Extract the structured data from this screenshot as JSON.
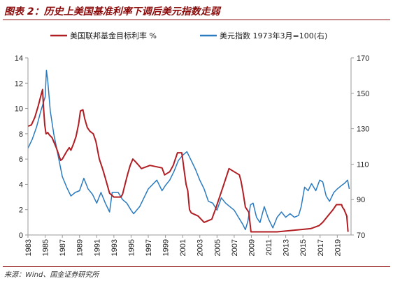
{
  "header": {
    "title": "图表 2：历史上美国基准利率下调后美元指数走弱"
  },
  "footer": {
    "source": "来源：Wind、国金证券研究所"
  },
  "colors": {
    "fed_rate": "#b01e23",
    "dxy": "#2a7bc0",
    "title": "#8b0a0a"
  },
  "chart_data": {
    "type": "line",
    "title": "",
    "xlabel": "",
    "ylabel": "",
    "y2label": "",
    "grid": false,
    "legend_position": "top",
    "xlim": [
      1983,
      2020.6
    ],
    "ylim": [
      0,
      14
    ],
    "y2lim": [
      70,
      170
    ],
    "x_ticks": [
      "1983",
      "1985",
      "1987",
      "1989",
      "1991",
      "1993",
      "1995",
      "1997",
      "1999",
      "2001",
      "2003",
      "2005",
      "2007",
      "2009",
      "2011",
      "2013",
      "2015",
      "2017",
      "2019"
    ],
    "y_ticks": [
      "0",
      "2",
      "4",
      "6",
      "8",
      "10",
      "12",
      "14"
    ],
    "y2_ticks": [
      "70",
      "90",
      "110",
      "130",
      "150",
      "170"
    ],
    "series": [
      {
        "name": "美国联邦基金目标利率 %",
        "axis": "left",
        "x": [
          1983.0,
          1983.4,
          1983.8,
          1984.2,
          1984.5,
          1984.7,
          1984.8,
          1984.95,
          1985.1,
          1985.3,
          1985.5,
          1985.8,
          1986.3,
          1986.8,
          1987.0,
          1987.5,
          1987.8,
          1988.0,
          1988.3,
          1988.6,
          1988.9,
          1989.1,
          1989.4,
          1989.6,
          1989.9,
          1990.2,
          1990.6,
          1990.9,
          1991.3,
          1991.7,
          1992.0,
          1992.5,
          1993.0,
          1993.8,
          1994.0,
          1994.3,
          1994.6,
          1994.9,
          1995.2,
          1995.5,
          1995.9,
          1996.2,
          1997.2,
          1998.6,
          1998.9,
          1999.5,
          1999.9,
          2000.4,
          2000.9,
          2001.0,
          2001.2,
          2001.4,
          2001.6,
          2001.8,
          2002.0,
          2002.8,
          2003.5,
          2004.4,
          2004.8,
          2005.3,
          2005.8,
          2006.4,
          2007.6,
          2007.8,
          2008.0,
          2008.3,
          2008.7,
          2008.95,
          2009.5,
          2012.0,
          2015.9,
          2016.9,
          2017.3,
          2017.9,
          2018.5,
          2018.9,
          2019.5,
          2019.6,
          2019.8,
          2019.95,
          2020.1,
          2020.25
        ],
        "y": [
          8.6,
          8.7,
          9.3,
          10.2,
          11.0,
          11.5,
          10.2,
          8.7,
          8.0,
          8.1,
          7.9,
          7.7,
          6.9,
          5.9,
          6.0,
          6.6,
          6.9,
          6.7,
          7.2,
          7.8,
          8.8,
          9.8,
          9.9,
          9.2,
          8.5,
          8.2,
          8.0,
          7.4,
          6.0,
          5.2,
          4.5,
          3.3,
          3.0,
          3.0,
          3.2,
          4.0,
          4.8,
          5.5,
          6.0,
          5.8,
          5.5,
          5.25,
          5.5,
          5.3,
          4.75,
          5.0,
          5.5,
          6.5,
          6.5,
          6.0,
          5.0,
          4.0,
          3.5,
          2.0,
          1.75,
          1.5,
          1.0,
          1.25,
          2.0,
          3.0,
          4.0,
          5.25,
          4.75,
          4.25,
          3.5,
          2.2,
          1.8,
          0.25,
          0.25,
          0.25,
          0.5,
          0.75,
          1.0,
          1.5,
          2.0,
          2.4,
          2.4,
          2.2,
          2.0,
          1.75,
          1.5,
          0.25
        ]
      },
      {
        "name": "美元指数 1973年3月=100(右)",
        "axis": "right",
        "x": [
          1983.0,
          1983.5,
          1984.0,
          1984.5,
          1985.0,
          1985.15,
          1985.3,
          1985.6,
          1986.0,
          1986.5,
          1987.0,
          1987.5,
          1988.0,
          1988.5,
          1989.0,
          1989.5,
          1990.0,
          1990.5,
          1991.0,
          1991.5,
          1992.0,
          1992.5,
          1992.8,
          1993.5,
          1994.0,
          1994.5,
          1995.0,
          1995.3,
          1996.0,
          1997.0,
          1998.0,
          1998.6,
          1999.0,
          1999.5,
          2000.0,
          2000.5,
          2001.0,
          2001.5,
          2002.0,
          2002.5,
          2003.0,
          2003.5,
          2004.0,
          2004.5,
          2005.0,
          2005.5,
          2006.0,
          2006.5,
          2007.0,
          2007.5,
          2008.0,
          2008.3,
          2008.6,
          2008.9,
          2009.2,
          2009.6,
          2010.0,
          2010.5,
          2011.0,
          2011.5,
          2012.0,
          2012.5,
          2013.0,
          2013.5,
          2014.0,
          2014.5,
          2014.8,
          2015.2,
          2015.6,
          2016.0,
          2016.5,
          2016.95,
          2017.3,
          2017.7,
          2018.1,
          2018.6,
          2019.0,
          2019.5,
          2019.8,
          2020.2,
          2020.4
        ],
        "y": [
          119,
          124,
          131,
          140,
          148,
          163,
          157,
          140,
          127,
          115,
          103,
          97,
          92,
          94,
          95,
          102,
          96,
          93,
          88,
          94,
          88,
          83,
          94,
          94,
          90,
          88,
          84,
          82,
          86,
          96,
          101,
          95,
          98,
          101,
          106,
          112,
          115,
          117,
          112,
          107,
          101,
          96,
          89,
          88,
          84,
          91,
          88,
          86,
          84,
          80,
          76,
          73,
          78,
          87,
          88,
          80,
          77,
          86,
          79,
          74,
          80,
          83,
          80,
          82,
          80,
          81,
          86,
          97,
          95,
          99,
          95,
          101,
          100,
          92,
          89,
          94,
          96,
          98,
          99,
          101,
          96
        ]
      }
    ]
  }
}
